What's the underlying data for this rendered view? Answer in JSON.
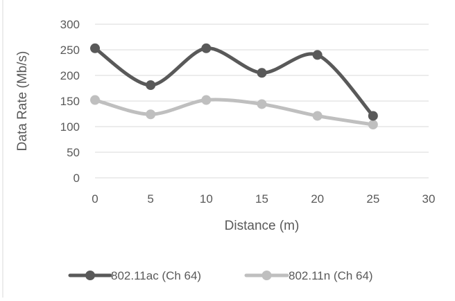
{
  "chart_data": {
    "type": "line",
    "xlabel": "Distance (m)",
    "ylabel": "Data Rate (Mb/s)",
    "xlim": [
      0,
      30
    ],
    "ylim": [
      0,
      300
    ],
    "x_ticks": [
      "0",
      "5",
      "10",
      "15",
      "20",
      "25",
      "30"
    ],
    "y_ticks": [
      "0",
      "50",
      "100",
      "150",
      "200",
      "250",
      "300"
    ],
    "grid": "horizontal",
    "legend_position": "bottom",
    "x": [
      0,
      5,
      10,
      15,
      20,
      25
    ],
    "series": [
      {
        "name": "802.11ac (Ch 64)",
        "values": [
          253,
          181,
          253,
          205,
          240,
          121
        ],
        "color": "#595959"
      },
      {
        "name": "802.11n (Ch 64)",
        "values": [
          152,
          124,
          152,
          144,
          121,
          104
        ],
        "color": "#bfbfbf"
      }
    ]
  }
}
